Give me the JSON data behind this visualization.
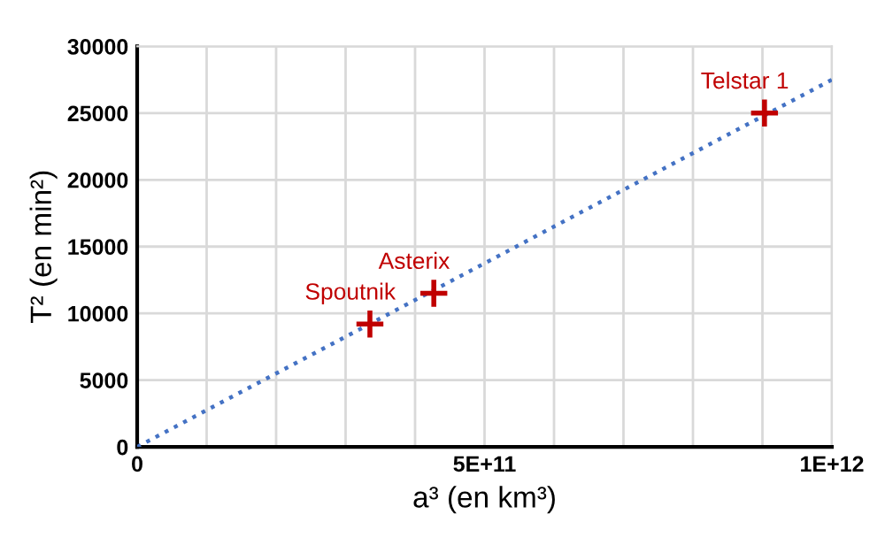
{
  "chart_data": {
    "type": "scatter",
    "xlabel": "a³ (en km³)",
    "ylabel": "T² (en min²)",
    "xlim": [
      0,
      1000000000000.0
    ],
    "ylim": [
      0,
      30000
    ],
    "xticks": [
      0,
      {
        "value": 100000000000.0,
        "label": null
      },
      {
        "value": 200000000000.0,
        "label": null
      },
      {
        "value": 300000000000.0,
        "label": null
      },
      {
        "value": 400000000000.0,
        "label": null
      },
      {
        "value": 500000000000.0,
        "label": "5E+11"
      },
      {
        "value": 600000000000.0,
        "label": null
      },
      {
        "value": 700000000000.0,
        "label": null
      },
      {
        "value": 800000000000.0,
        "label": null
      },
      {
        "value": 900000000000.0,
        "label": null
      },
      {
        "value": 1000000000000.0,
        "label": "1E+12"
      }
    ],
    "yticks": [
      0,
      5000,
      10000,
      15000,
      20000,
      25000,
      30000
    ],
    "grid": true,
    "marker": "cross",
    "series": [
      {
        "color": "#c00000",
        "x": [
          335000000000.0,
          427000000000.0,
          903000000000.0
        ],
        "values": [
          9200,
          11500,
          25000
        ]
      },
      {
        "type": "line",
        "color": "#4472c4",
        "line_style": "dotted",
        "marker": "none",
        "x": [
          0,
          1000000000000.0
        ],
        "values": [
          0,
          27500
        ]
      }
    ],
    "annotations": [
      {
        "text": "Spoutnik",
        "x": 335000000000.0,
        "y": 9200
      },
      {
        "text": "Asterix",
        "x": 427000000000.0,
        "y": 11500
      },
      {
        "text": "Telstar 1",
        "x": 903000000000.0,
        "y": 25000
      }
    ]
  }
}
